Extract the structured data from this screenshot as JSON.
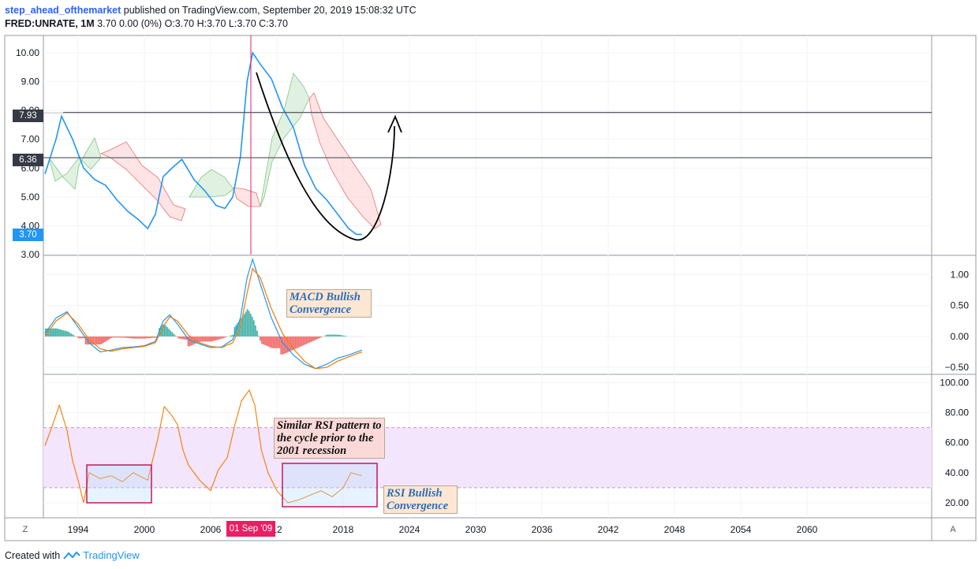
{
  "header": {
    "author": "step_ahead_ofthemarket",
    "published": "published on TradingView.com, September 20, 2019 15:08:32 UTC",
    "symbol": "FRED:UNRATE, 1M",
    "ohlc": "3.70 0.00 (0%) O:3.70 H:3.70 L:3.70 C:3.70"
  },
  "footer": {
    "created_with": "Created with",
    "brand": "TradingView"
  },
  "axis_buttons": {
    "left": "Z",
    "right": "A"
  },
  "crosshair_date": "01 Sep '09",
  "colors": {
    "price": "#2196f3",
    "rsi": "#f57c00",
    "cloud_green": "#a5d6a7",
    "cloud_red": "#f8b4b4",
    "rsi_band": "#e1bee7",
    "crosshair": "#e91e63"
  },
  "chart_data": [
    {
      "type": "line",
      "name": "price-pane",
      "ylim": [
        3.0,
        10.6
      ],
      "yticks": [
        "10.00",
        "9.00",
        "8.00",
        "7.00",
        "6.00",
        "5.00",
        "4.00",
        "3.00"
      ],
      "price_labels": [
        "7.93",
        "6.36",
        "3.70"
      ],
      "horizontal_lines": [
        7.93,
        6.36
      ],
      "x": [
        1991.0,
        1992.0,
        1992.5,
        1993.5,
        1994.5,
        1995.5,
        1996.5,
        1997.5,
        1998.5,
        1999.5,
        2000.3,
        2001.0,
        2001.7,
        2002.5,
        2003.4,
        2004.5,
        2005.5,
        2006.5,
        2007.3,
        2008.0,
        2008.7,
        2009.3,
        2009.8,
        2010.5,
        2011.5,
        2012.5,
        2013.5,
        2014.5,
        2015.5,
        2016.5,
        2017.5,
        2018.5,
        2019.2,
        2019.7
      ],
      "series": [
        {
          "values": [
            5.8,
            7.0,
            7.8,
            7.0,
            6.0,
            5.6,
            5.4,
            4.9,
            4.5,
            4.2,
            3.9,
            4.4,
            5.7,
            6.0,
            6.3,
            5.6,
            5.2,
            4.7,
            4.6,
            5.0,
            6.4,
            9.0,
            10.0,
            9.6,
            9.1,
            8.1,
            7.4,
            6.1,
            5.3,
            4.9,
            4.4,
            3.9,
            3.7,
            3.7
          ]
        }
      ],
      "annotations_curve": "hand-drawn arc from 2010 high down to 2019 and up toward 7.9"
    },
    {
      "type": "line",
      "name": "macd-pane",
      "ylim": [
        -0.6,
        1.3
      ],
      "yticks": [
        "1.00",
        "0.50",
        "0.00",
        "−0.50"
      ],
      "x": [
        1991.0,
        1992.0,
        1993.0,
        1994.0,
        1995.0,
        1996.0,
        1997.0,
        1998.0,
        1999.0,
        2000.0,
        2001.0,
        2001.7,
        2002.3,
        2003.0,
        2004.0,
        2005.0,
        2006.0,
        2007.0,
        2008.0,
        2008.7,
        2009.3,
        2009.8,
        2010.5,
        2011.5,
        2012.5,
        2013.5,
        2014.5,
        2015.5,
        2016.5,
        2017.5,
        2018.5,
        2019.7
      ],
      "series": [
        {
          "values": [
            0.05,
            0.3,
            0.4,
            0.15,
            -0.1,
            -0.25,
            -0.22,
            -0.18,
            -0.17,
            -0.15,
            -0.08,
            0.25,
            0.35,
            0.2,
            -0.05,
            -0.12,
            -0.18,
            -0.17,
            -0.05,
            0.3,
            0.95,
            1.25,
            0.85,
            0.3,
            -0.1,
            -0.3,
            -0.45,
            -0.52,
            -0.45,
            -0.35,
            -0.3,
            -0.22
          ]
        },
        {
          "values": [
            0.0,
            0.25,
            0.38,
            0.2,
            -0.05,
            -0.2,
            -0.24,
            -0.2,
            -0.18,
            -0.16,
            -0.1,
            0.15,
            0.32,
            0.25,
            0.02,
            -0.1,
            -0.16,
            -0.18,
            -0.1,
            0.15,
            0.7,
            1.1,
            0.95,
            0.45,
            0.05,
            -0.2,
            -0.4,
            -0.52,
            -0.5,
            -0.4,
            -0.33,
            -0.25
          ]
        }
      ]
    },
    {
      "type": "line",
      "name": "rsi-pane",
      "ylim": [
        10,
        105
      ],
      "yticks": [
        "100.00",
        "80.00",
        "60.00",
        "40.00",
        "20.00"
      ],
      "band": [
        30,
        70
      ],
      "x": [
        1991.0,
        1991.7,
        1992.3,
        1993.0,
        1993.5,
        1994.0,
        1994.5,
        1995.0,
        1996.0,
        1997.0,
        1998.0,
        1999.0,
        2000.3,
        2001.2,
        2001.8,
        2002.5,
        2003.0,
        2003.5,
        2004.0,
        2005.0,
        2006.0,
        2006.7,
        2007.5,
        2008.2,
        2008.8,
        2009.5,
        2010.0,
        2010.6,
        2011.2,
        2012.0,
        2013.0,
        2014.0,
        2015.0,
        2016.0,
        2017.0,
        2018.0,
        2018.7,
        2019.7
      ],
      "series": [
        {
          "values": [
            58,
            72,
            85,
            68,
            48,
            35,
            20,
            40,
            36,
            38,
            34,
            40,
            35,
            62,
            84,
            78,
            72,
            55,
            45,
            35,
            28,
            42,
            50,
            72,
            88,
            95,
            85,
            55,
            40,
            28,
            20,
            22,
            25,
            28,
            24,
            30,
            40,
            38
          ]
        }
      ]
    }
  ],
  "annotations": {
    "macd": "MACD Bullish Convergence",
    "rsi_pattern": "Similar RSI pattern to the cycle prior to the 2001 recession",
    "rsi_bull": "RSI Bullish Convergence"
  },
  "xaxis": {
    "ticks": [
      "1994",
      "2000",
      "2006",
      "12",
      "2018",
      "2024",
      "2030",
      "2036",
      "2042",
      "2048",
      "2054",
      "2060"
    ]
  }
}
